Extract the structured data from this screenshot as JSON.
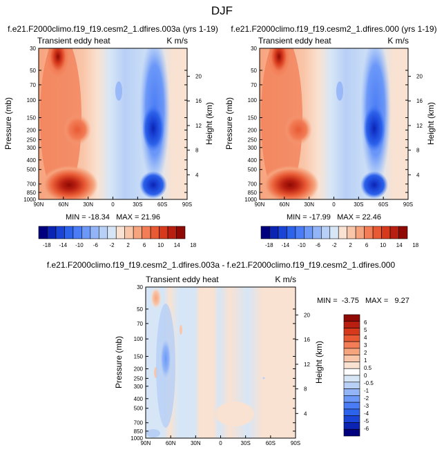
{
  "figure_title": "DJF",
  "colors": {
    "ctrl_scale": [
      "#00007f",
      "#0c24b4",
      "#1a44d6",
      "#2d62ea",
      "#4a7cf5",
      "#6c98f8",
      "#93b5f8",
      "#b8d0f6",
      "#d6e6f6",
      "#f9e2d2",
      "#f9c6a9",
      "#f6a47e",
      "#f27d56",
      "#e85a34",
      "#d7391c",
      "#b81f10",
      "#8f0a05"
    ],
    "diff_scale": [
      "#00007f",
      "#0c24b4",
      "#1a44d6",
      "#2d62ea",
      "#4a7cf5",
      "#6c98f8",
      "#93b5f8",
      "#b8d0f6",
      "#d6e6f6",
      "#ffffff",
      "#f9e2d2",
      "#f9c6a9",
      "#f6a47e",
      "#f27d56",
      "#e85a34",
      "#d7391c",
      "#b81f10",
      "#8f0a05"
    ]
  },
  "chart_data": [
    {
      "type": "heatmap",
      "title": "f.e21.F2000climo.f19_f19.cesm2_1.dfires.003a (yrs 1-19)",
      "left_string": "Transient eddy heat",
      "right_string": "K m/s",
      "ylabel": "Pressure (mb)",
      "ylabel_right": "Height (km)",
      "x_ticks": [
        "90N",
        "60N",
        "30N",
        "0",
        "30S",
        "60S",
        "90S"
      ],
      "y_ticks": [
        "30",
        "50",
        "70",
        "100",
        "150",
        "200",
        "250",
        "300",
        "400",
        "500",
        "700",
        "850",
        "1000"
      ],
      "y_ticks_right": [
        "20",
        "16",
        "12",
        "8",
        "4"
      ],
      "min_max_text": "MIN = -18.34   MAX = 21.96",
      "min": -18.34,
      "max": 21.96,
      "colorbar_labels": [
        "-18",
        "-14",
        "-10",
        "-6",
        "-2",
        "2",
        "6",
        "10",
        "14",
        "18"
      ],
      "features": [
        {
          "lat": 62,
          "p": 30,
          "value": 20
        },
        {
          "lat": 48,
          "p": 900,
          "value": 21
        },
        {
          "lat": -50,
          "p": 200,
          "value": -18
        },
        {
          "lat": -50,
          "p": 850,
          "value": -16
        }
      ]
    },
    {
      "type": "heatmap",
      "title": "f.e21.F2000climo.f19_f19.cesm2_1.dfires.000 (yrs 1-19)",
      "left_string": "Transient eddy heat",
      "right_string": "K m/s",
      "ylabel": "Pressure (mb)",
      "ylabel_right": "Height (km)",
      "x_ticks": [
        "90N",
        "60N",
        "30N",
        "0",
        "30S",
        "60S",
        "90S"
      ],
      "y_ticks": [
        "30",
        "50",
        "70",
        "100",
        "150",
        "200",
        "250",
        "300",
        "400",
        "500",
        "700",
        "850",
        "1000"
      ],
      "y_ticks_right": [
        "20",
        "16",
        "12",
        "8",
        "4"
      ],
      "min_max_text": "MIN = -17.99   MAX = 22.46",
      "min": -17.99,
      "max": 22.46,
      "colorbar_labels": [
        "-18",
        "-14",
        "-10",
        "-6",
        "-2",
        "2",
        "6",
        "10",
        "14",
        "18"
      ],
      "features": [
        {
          "lat": 62,
          "p": 30,
          "value": 21
        },
        {
          "lat": 48,
          "p": 900,
          "value": 22
        },
        {
          "lat": -50,
          "p": 200,
          "value": -18
        },
        {
          "lat": -50,
          "p": 850,
          "value": -16
        }
      ]
    },
    {
      "type": "heatmap",
      "title": "f.e21.F2000climo.f19_f19.cesm2_1.dfires.003a - f.e21.F2000climo.f19_f19.cesm2_1.dfires.000",
      "left_string": "Transient eddy heat",
      "right_string": "K m/s",
      "ylabel": "Pressure (mb)",
      "ylabel_right": "Height (km)",
      "x_ticks": [
        "90N",
        "60N",
        "30N",
        "0",
        "30S",
        "60S",
        "90S"
      ],
      "y_ticks": [
        "30",
        "50",
        "70",
        "100",
        "150",
        "200",
        "250",
        "300",
        "400",
        "500",
        "700",
        "850",
        "1000"
      ],
      "y_ticks_right": [
        "20",
        "16",
        "12",
        "8",
        "4"
      ],
      "min_max_text": "MIN =  -3.75   MAX =   9.27",
      "min": -3.75,
      "max": 9.27,
      "colorbar_labels": [
        "6",
        "5",
        "4",
        "3",
        "2",
        "1",
        "0.5",
        "0",
        "-0.5",
        "-1",
        "-2",
        "-3",
        "-4",
        "-5",
        "-6"
      ]
    }
  ]
}
